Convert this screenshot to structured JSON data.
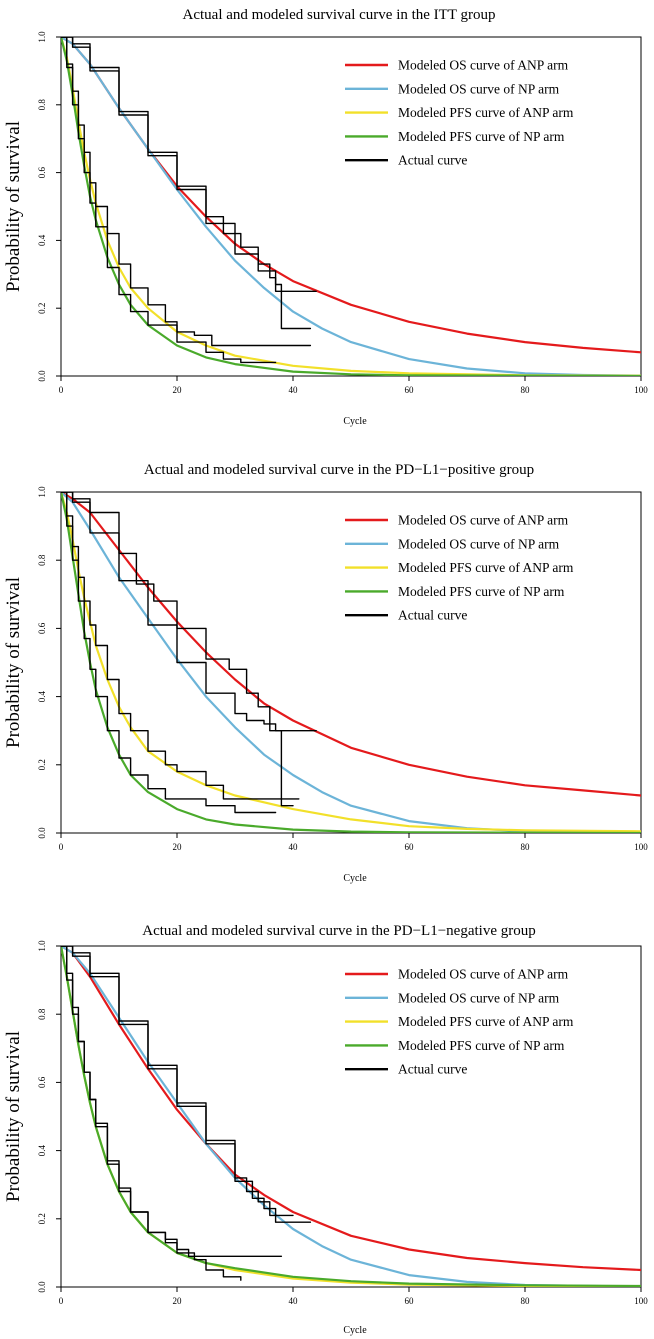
{
  "chart_data": [
    {
      "type": "line",
      "title": "Actual and modeled survival curve in the ITT group",
      "xlabel": "Cycle",
      "ylabel": "Probability of survival",
      "xlim": [
        0,
        100
      ],
      "ylim": [
        0,
        1
      ],
      "xticks": [
        "0",
        "20",
        "40",
        "60",
        "80",
        "100"
      ],
      "yticks": [
        "0.0",
        "0.2",
        "0.4",
        "0.6",
        "0.8",
        "1.0"
      ],
      "legend_position": "top-right",
      "series": [
        {
          "name": "Modeled OS curve of ANP arm",
          "color": "#e41a1c",
          "style": "modeled",
          "x": [
            0,
            2,
            5,
            10,
            15,
            20,
            25,
            30,
            35,
            40,
            50,
            60,
            70,
            80,
            90,
            100
          ],
          "y": [
            1.0,
            0.98,
            0.92,
            0.79,
            0.67,
            0.56,
            0.47,
            0.39,
            0.33,
            0.28,
            0.21,
            0.16,
            0.125,
            0.1,
            0.083,
            0.07
          ]
        },
        {
          "name": "Modeled OS curve of NP arm",
          "color": "#6cb4d8",
          "style": "modeled",
          "x": [
            0,
            2,
            5,
            10,
            15,
            20,
            25,
            30,
            35,
            40,
            45,
            50,
            60,
            70,
            80,
            90,
            100
          ],
          "y": [
            1.0,
            0.98,
            0.92,
            0.79,
            0.67,
            0.55,
            0.44,
            0.34,
            0.26,
            0.19,
            0.14,
            0.1,
            0.05,
            0.022,
            0.008,
            0.003,
            0.001
          ]
        },
        {
          "name": "Modeled PFS curve of ANP arm",
          "color": "#f2e02a",
          "style": "modeled",
          "x": [
            0,
            1,
            2,
            3,
            4,
            5,
            6,
            8,
            10,
            12,
            15,
            20,
            25,
            30,
            40,
            50,
            60,
            80,
            100
          ],
          "y": [
            1.0,
            0.94,
            0.85,
            0.75,
            0.66,
            0.58,
            0.51,
            0.4,
            0.32,
            0.26,
            0.2,
            0.13,
            0.09,
            0.06,
            0.03,
            0.015,
            0.008,
            0.002,
            0.001
          ]
        },
        {
          "name": "Modeled PFS curve of NP arm",
          "color": "#4aaa2b",
          "style": "modeled",
          "x": [
            0,
            1,
            2,
            3,
            4,
            5,
            6,
            8,
            10,
            12,
            15,
            20,
            25,
            30,
            40,
            50,
            60,
            80,
            100
          ],
          "y": [
            1.0,
            0.93,
            0.83,
            0.72,
            0.62,
            0.53,
            0.46,
            0.35,
            0.27,
            0.21,
            0.15,
            0.09,
            0.055,
            0.035,
            0.013,
            0.005,
            0.002,
            0.001,
            0.0
          ]
        },
        {
          "name": "Actual curve",
          "color": "#000000",
          "style": "actual",
          "legend": true,
          "x": [
            0,
            2,
            5,
            10,
            15,
            20,
            25,
            28,
            31,
            34,
            36,
            37,
            39,
            44
          ],
          "y": [
            1.0,
            0.98,
            0.91,
            0.78,
            0.66,
            0.56,
            0.47,
            0.42,
            0.38,
            0.33,
            0.29,
            0.25,
            0.25,
            0.25
          ]
        },
        {
          "name": "Actual curve",
          "color": "#000000",
          "style": "actual",
          "legend": false,
          "x": [
            0,
            2,
            5,
            10,
            15,
            20,
            25,
            30,
            34,
            37,
            38,
            43
          ],
          "y": [
            1.0,
            0.97,
            0.9,
            0.77,
            0.65,
            0.55,
            0.45,
            0.36,
            0.31,
            0.27,
            0.14,
            0.14
          ]
        },
        {
          "name": "Actual curve",
          "color": "#000000",
          "style": "actual",
          "legend": false,
          "x": [
            0,
            1,
            2,
            3,
            4,
            5,
            6,
            8,
            10,
            12,
            15,
            18,
            20,
            23,
            26,
            43
          ],
          "y": [
            1.0,
            0.92,
            0.84,
            0.74,
            0.66,
            0.57,
            0.5,
            0.42,
            0.33,
            0.26,
            0.21,
            0.16,
            0.13,
            0.12,
            0.09,
            0.09
          ]
        },
        {
          "name": "Actual curve",
          "color": "#000000",
          "style": "actual",
          "legend": false,
          "x": [
            0,
            1,
            2,
            3,
            4,
            5,
            6,
            8,
            10,
            12,
            15,
            20,
            25,
            28,
            31,
            37
          ],
          "y": [
            1.0,
            0.91,
            0.8,
            0.7,
            0.6,
            0.51,
            0.44,
            0.32,
            0.24,
            0.19,
            0.15,
            0.1,
            0.07,
            0.05,
            0.04,
            0.04
          ]
        }
      ]
    },
    {
      "type": "line",
      "title": "Actual and modeled survival curve in the PD−L1−positive group",
      "xlabel": "Cycle",
      "ylabel": "Probability of survival",
      "xlim": [
        0,
        100
      ],
      "ylim": [
        0,
        1
      ],
      "xticks": [
        "0",
        "20",
        "40",
        "60",
        "80",
        "100"
      ],
      "yticks": [
        "0.0",
        "0.2",
        "0.4",
        "0.6",
        "0.8",
        "1.0"
      ],
      "legend_position": "top-right",
      "series": [
        {
          "name": "Modeled OS curve of ANP arm",
          "color": "#e41a1c",
          "style": "modeled",
          "x": [
            0,
            2,
            5,
            10,
            15,
            20,
            25,
            30,
            35,
            40,
            50,
            60,
            70,
            80,
            90,
            100
          ],
          "y": [
            1.0,
            0.98,
            0.94,
            0.83,
            0.72,
            0.62,
            0.53,
            0.45,
            0.38,
            0.33,
            0.25,
            0.2,
            0.165,
            0.14,
            0.125,
            0.11
          ]
        },
        {
          "name": "Modeled OS curve of NP arm",
          "color": "#6cb4d8",
          "style": "modeled",
          "x": [
            0,
            2,
            5,
            10,
            15,
            20,
            25,
            30,
            35,
            40,
            45,
            50,
            60,
            70,
            80,
            100
          ],
          "y": [
            1.0,
            0.97,
            0.89,
            0.75,
            0.63,
            0.51,
            0.4,
            0.31,
            0.23,
            0.17,
            0.12,
            0.08,
            0.035,
            0.014,
            0.005,
            0.001
          ]
        },
        {
          "name": "Modeled PFS curve of ANP arm",
          "color": "#f2e02a",
          "style": "modeled",
          "x": [
            0,
            1,
            2,
            3,
            4,
            5,
            6,
            8,
            10,
            12,
            15,
            20,
            25,
            30,
            40,
            50,
            60,
            70,
            80,
            100
          ],
          "y": [
            1.0,
            0.94,
            0.86,
            0.77,
            0.69,
            0.62,
            0.55,
            0.45,
            0.37,
            0.31,
            0.24,
            0.18,
            0.14,
            0.11,
            0.07,
            0.04,
            0.02,
            0.012,
            0.008,
            0.005
          ]
        },
        {
          "name": "Modeled PFS curve of NP arm",
          "color": "#4aaa2b",
          "style": "modeled",
          "x": [
            0,
            1,
            2,
            3,
            4,
            5,
            6,
            8,
            10,
            12,
            15,
            20,
            25,
            30,
            40,
            50,
            60,
            80,
            100
          ],
          "y": [
            1.0,
            0.92,
            0.81,
            0.7,
            0.59,
            0.5,
            0.42,
            0.31,
            0.23,
            0.17,
            0.12,
            0.07,
            0.04,
            0.025,
            0.01,
            0.004,
            0.002,
            0.001,
            0.0
          ]
        },
        {
          "name": "Actual curve",
          "color": "#000000",
          "style": "actual",
          "legend": true,
          "x": [
            0,
            2,
            5,
            10,
            13,
            16,
            20,
            25,
            29,
            32,
            34,
            36,
            44
          ],
          "y": [
            1.0,
            0.98,
            0.94,
            0.82,
            0.73,
            0.68,
            0.6,
            0.51,
            0.48,
            0.41,
            0.37,
            0.3,
            0.3
          ]
        },
        {
          "name": "Actual curve",
          "color": "#000000",
          "style": "actual",
          "legend": false,
          "x": [
            0,
            2,
            5,
            10,
            15,
            20,
            25,
            30,
            32,
            35,
            37,
            38,
            40
          ],
          "y": [
            1.0,
            0.97,
            0.88,
            0.74,
            0.61,
            0.5,
            0.41,
            0.35,
            0.33,
            0.32,
            0.3,
            0.08,
            0.08
          ]
        },
        {
          "name": "Actual curve",
          "color": "#000000",
          "style": "actual",
          "legend": false,
          "x": [
            0,
            1,
            2,
            3,
            4,
            5,
            6,
            8,
            10,
            12,
            15,
            18,
            20,
            25,
            28,
            41
          ],
          "y": [
            1.0,
            0.93,
            0.84,
            0.75,
            0.68,
            0.61,
            0.55,
            0.45,
            0.35,
            0.3,
            0.24,
            0.2,
            0.18,
            0.14,
            0.1,
            0.1
          ]
        },
        {
          "name": "Actual curve",
          "color": "#000000",
          "style": "actual",
          "legend": false,
          "x": [
            0,
            1,
            2,
            3,
            4,
            5,
            6,
            8,
            10,
            12,
            15,
            18,
            20,
            25,
            30,
            37
          ],
          "y": [
            1.0,
            0.9,
            0.8,
            0.68,
            0.57,
            0.48,
            0.4,
            0.3,
            0.22,
            0.17,
            0.13,
            0.1,
            0.1,
            0.08,
            0.06,
            0.06
          ]
        }
      ]
    },
    {
      "type": "line",
      "title": "Actual and modeled survival curve in the PD−L1−negative group",
      "xlabel": "Cycle",
      "ylabel": "Probability of survival",
      "xlim": [
        0,
        100
      ],
      "ylim": [
        0,
        1
      ],
      "xticks": [
        "0",
        "20",
        "40",
        "60",
        "80",
        "100"
      ],
      "yticks": [
        "0.0",
        "0.2",
        "0.4",
        "0.6",
        "0.8",
        "1.0"
      ],
      "legend_position": "top-right",
      "series": [
        {
          "name": "Modeled OS curve of ANP arm",
          "color": "#e41a1c",
          "style": "modeled",
          "x": [
            0,
            2,
            5,
            10,
            15,
            20,
            25,
            30,
            35,
            40,
            50,
            60,
            70,
            80,
            90,
            100
          ],
          "y": [
            1.0,
            0.98,
            0.91,
            0.77,
            0.64,
            0.52,
            0.42,
            0.33,
            0.27,
            0.22,
            0.15,
            0.11,
            0.085,
            0.07,
            0.058,
            0.05
          ]
        },
        {
          "name": "Modeled OS curve of NP arm",
          "color": "#6cb4d8",
          "style": "modeled",
          "x": [
            0,
            2,
            5,
            10,
            15,
            20,
            25,
            30,
            35,
            40,
            45,
            50,
            60,
            70,
            80,
            100
          ],
          "y": [
            1.0,
            0.98,
            0.92,
            0.79,
            0.66,
            0.54,
            0.42,
            0.32,
            0.24,
            0.17,
            0.12,
            0.08,
            0.035,
            0.015,
            0.006,
            0.001
          ]
        },
        {
          "name": "Modeled PFS curve of ANP arm",
          "color": "#f2e02a",
          "style": "modeled",
          "x": [
            0,
            1,
            2,
            3,
            4,
            5,
            6,
            8,
            10,
            12,
            15,
            20,
            25,
            30,
            40,
            50,
            60,
            80,
            100
          ],
          "y": [
            1.0,
            0.91,
            0.81,
            0.71,
            0.62,
            0.54,
            0.47,
            0.36,
            0.28,
            0.22,
            0.16,
            0.1,
            0.07,
            0.05,
            0.025,
            0.013,
            0.007,
            0.003,
            0.002
          ]
        },
        {
          "name": "Modeled PFS curve of NP arm",
          "color": "#4aaa2b",
          "style": "modeled",
          "x": [
            0,
            1,
            2,
            3,
            4,
            5,
            6,
            8,
            10,
            12,
            15,
            20,
            25,
            30,
            40,
            50,
            60,
            80,
            100
          ],
          "y": [
            1.0,
            0.91,
            0.81,
            0.71,
            0.62,
            0.54,
            0.47,
            0.36,
            0.28,
            0.22,
            0.16,
            0.1,
            0.07,
            0.055,
            0.03,
            0.017,
            0.01,
            0.005,
            0.003
          ]
        },
        {
          "name": "Actual curve",
          "color": "#000000",
          "style": "actual",
          "legend": true,
          "x": [
            0,
            2,
            5,
            10,
            15,
            20,
            25,
            30,
            32,
            34,
            36,
            40
          ],
          "y": [
            1.0,
            0.98,
            0.92,
            0.78,
            0.65,
            0.54,
            0.43,
            0.32,
            0.28,
            0.25,
            0.21,
            0.21
          ]
        },
        {
          "name": "Actual curve",
          "color": "#000000",
          "style": "actual",
          "legend": false,
          "x": [
            0,
            2,
            5,
            10,
            15,
            20,
            25,
            30,
            33,
            35,
            37,
            43
          ],
          "y": [
            1.0,
            0.97,
            0.91,
            0.77,
            0.64,
            0.53,
            0.42,
            0.31,
            0.26,
            0.23,
            0.19,
            0.19
          ]
        },
        {
          "name": "Actual curve",
          "color": "#000000",
          "style": "actual",
          "legend": false,
          "x": [
            0,
            1,
            2,
            3,
            4,
            5,
            6,
            8,
            10,
            12,
            15,
            18,
            20,
            22,
            38
          ],
          "y": [
            1.0,
            0.9,
            0.8,
            0.72,
            0.63,
            0.55,
            0.48,
            0.37,
            0.29,
            0.22,
            0.16,
            0.14,
            0.11,
            0.09,
            0.09
          ]
        },
        {
          "name": "Actual curve",
          "color": "#000000",
          "style": "actual",
          "legend": false,
          "x": [
            0,
            1,
            2,
            3,
            4,
            5,
            6,
            8,
            10,
            12,
            15,
            18,
            20,
            23,
            25,
            28,
            31
          ],
          "y": [
            1.0,
            0.92,
            0.82,
            0.72,
            0.63,
            0.55,
            0.47,
            0.36,
            0.28,
            0.22,
            0.16,
            0.13,
            0.1,
            0.08,
            0.05,
            0.03,
            0.02
          ]
        }
      ]
    }
  ]
}
